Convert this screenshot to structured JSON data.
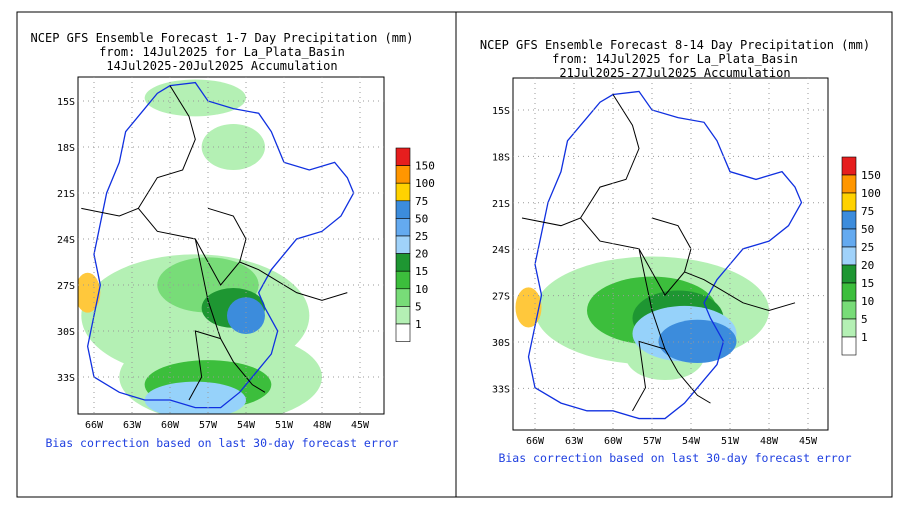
{
  "panels": [
    {
      "title_lines": [
        "NCEP GFS Ensemble Forecast 1-7 Day Precipitation (mm)",
        "from: 14Jul2025   for La_Plata_Basin",
        "14Jul2025-20Jul2025 Accumulation"
      ],
      "lat_labels": [
        "15S",
        "18S",
        "21S",
        "24S",
        "27S",
        "30S",
        "33S"
      ],
      "lon_labels": [
        "66W",
        "63W",
        "60W",
        "57W",
        "54W",
        "51W",
        "48W",
        "45W"
      ],
      "legend_levels": [
        150,
        100,
        75,
        50,
        25,
        20,
        15,
        10,
        5,
        1
      ],
      "footer": "Bias correction based on last 30-day forecast error"
    },
    {
      "title_lines": [
        "NCEP GFS Ensemble Forecast 8-14 Day Precipitation (mm)",
        "from: 14Jul2025   for La_Plata_Basin",
        "21Jul2025-27Jul2025 Accumulation"
      ],
      "lat_labels": [
        "15S",
        "18S",
        "21S",
        "24S",
        "27S",
        "30S",
        "33S"
      ],
      "lon_labels": [
        "66W",
        "63W",
        "60W",
        "57W",
        "54W",
        "51W",
        "48W",
        "45W"
      ],
      "legend_levels": [
        150,
        100,
        75,
        50,
        25,
        20,
        15,
        10,
        5,
        1
      ],
      "footer": "Bias correction based on last 30-day forecast error"
    }
  ]
}
